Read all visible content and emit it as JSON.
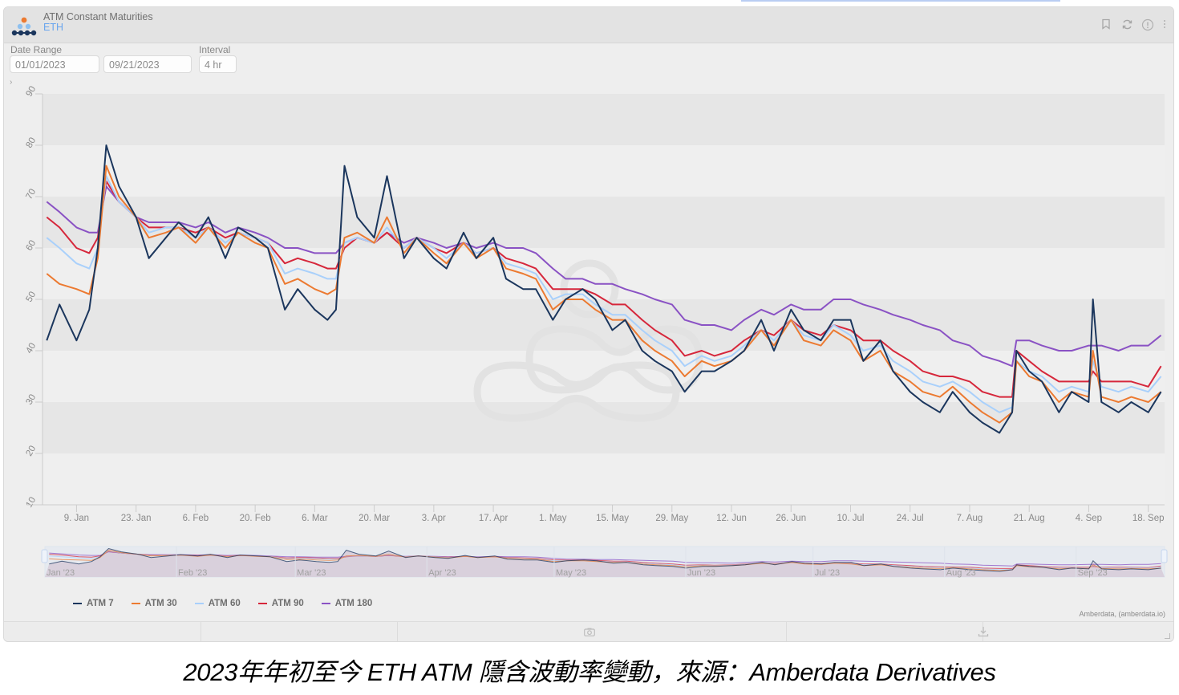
{
  "widget": {
    "title": "ATM Constant Maturities",
    "asset": "ETH",
    "header_icons": [
      "bookmark-icon",
      "refresh-icon",
      "info-icon",
      "more-vertical-icon"
    ],
    "controls": {
      "date_range_label": "Date Range",
      "date_start": "01/01/2023",
      "date_end": "09/21/2023",
      "interval_label": "Interval",
      "interval_value": "4 hr",
      "expander": "›"
    },
    "credit": "Amberdata, (amberdata.io)",
    "footer_icons": [
      "camera-icon",
      "download-icon"
    ]
  },
  "caption": "2023年年初至今 ETH ATM 隱含波動率變動，來源：Amberdata Derivatives",
  "colors": {
    "atm7": "#1b365d",
    "atm30": "#ec7a31",
    "atm60": "#a9d0fb",
    "atm90": "#d6273b",
    "atm180": "#8a52c4",
    "band": "#e6e6e6",
    "plot_bg": "#efefef"
  },
  "chart_data": {
    "type": "line",
    "title": "ATM Constant Maturities",
    "subtitle": "ETH",
    "xlabel": "",
    "ylabel": "",
    "ylim": [
      10,
      90
    ],
    "yticks": [
      10,
      20,
      30,
      40,
      50,
      60,
      70,
      80,
      90
    ],
    "xticks": [
      "9. Jan",
      "23. Jan",
      "6. Feb",
      "20. Feb",
      "6. Mar",
      "20. Mar",
      "3. Apr",
      "17. Apr",
      "1. May",
      "15. May",
      "29. May",
      "12. Jun",
      "26. Jun",
      "10. Jul",
      "24. Jul",
      "7. Aug",
      "21. Aug",
      "4. Sep",
      "18. Sep"
    ],
    "navigator_labels": [
      "Jan '23",
      "Feb '23",
      "Mar '23",
      "Apr '23",
      "May '23",
      "Jun '23",
      "Jul '23",
      "Aug '23",
      "Sep '23"
    ],
    "grid": "alternating horizontal bands",
    "legend_position": "bottom-left",
    "x": [
      "2023-01-02",
      "2023-01-05",
      "2023-01-09",
      "2023-01-12",
      "2023-01-14",
      "2023-01-16",
      "2023-01-19",
      "2023-01-23",
      "2023-01-26",
      "2023-01-30",
      "2023-02-02",
      "2023-02-06",
      "2023-02-09",
      "2023-02-13",
      "2023-02-16",
      "2023-02-20",
      "2023-02-23",
      "2023-02-27",
      "2023-03-02",
      "2023-03-06",
      "2023-03-09",
      "2023-03-11",
      "2023-03-13",
      "2023-03-16",
      "2023-03-20",
      "2023-03-23",
      "2023-03-27",
      "2023-03-30",
      "2023-04-03",
      "2023-04-06",
      "2023-04-10",
      "2023-04-13",
      "2023-04-17",
      "2023-04-20",
      "2023-04-24",
      "2023-04-27",
      "2023-05-01",
      "2023-05-04",
      "2023-05-08",
      "2023-05-11",
      "2023-05-15",
      "2023-05-18",
      "2023-05-22",
      "2023-05-25",
      "2023-05-29",
      "2023-06-01",
      "2023-06-05",
      "2023-06-08",
      "2023-06-12",
      "2023-06-15",
      "2023-06-19",
      "2023-06-22",
      "2023-06-26",
      "2023-06-29",
      "2023-07-03",
      "2023-07-06",
      "2023-07-10",
      "2023-07-13",
      "2023-07-17",
      "2023-07-20",
      "2023-07-24",
      "2023-07-27",
      "2023-07-31",
      "2023-08-03",
      "2023-08-07",
      "2023-08-10",
      "2023-08-14",
      "2023-08-17",
      "2023-08-18",
      "2023-08-21",
      "2023-08-24",
      "2023-08-28",
      "2023-08-31",
      "2023-09-04",
      "2023-09-05",
      "2023-09-07",
      "2023-09-11",
      "2023-09-14",
      "2023-09-18",
      "2023-09-21"
    ],
    "series": [
      {
        "name": "ATM 7",
        "key": "atm7",
        "values": [
          42,
          49,
          42,
          48,
          60,
          80,
          72,
          66,
          58,
          62,
          65,
          62,
          66,
          58,
          64,
          62,
          60,
          48,
          52,
          48,
          46,
          48,
          76,
          66,
          62,
          74,
          58,
          62,
          58,
          56,
          63,
          58,
          62,
          54,
          52,
          52,
          46,
          50,
          52,
          50,
          44,
          46,
          40,
          38,
          36,
          32,
          36,
          36,
          38,
          40,
          46,
          40,
          48,
          44,
          42,
          46,
          46,
          38,
          42,
          36,
          32,
          30,
          28,
          32,
          28,
          26,
          24,
          28,
          40,
          36,
          34,
          28,
          32,
          30,
          50,
          30,
          28,
          30,
          28,
          32
        ]
      },
      {
        "name": "ATM 30",
        "key": "atm30",
        "values": [
          55,
          53,
          52,
          51,
          58,
          76,
          70,
          66,
          62,
          63,
          64,
          61,
          64,
          60,
          63,
          61,
          60,
          53,
          54,
          52,
          51,
          52,
          62,
          63,
          61,
          66,
          59,
          62,
          59,
          57,
          61,
          58,
          60,
          56,
          55,
          54,
          48,
          50,
          50,
          48,
          46,
          46,
          42,
          40,
          38,
          35,
          38,
          37,
          38,
          40,
          44,
          41,
          46,
          42,
          41,
          44,
          42,
          38,
          40,
          36,
          34,
          32,
          31,
          33,
          30,
          28,
          26,
          28,
          38,
          35,
          34,
          30,
          32,
          31,
          40,
          31,
          30,
          31,
          30,
          32
        ]
      },
      {
        "name": "ATM 60",
        "key": "atm60",
        "values": [
          62,
          60,
          57,
          56,
          60,
          74,
          69,
          66,
          63,
          64,
          64,
          62,
          64,
          61,
          63,
          62,
          61,
          55,
          56,
          55,
          54,
          54,
          61,
          62,
          61,
          64,
          60,
          62,
          60,
          58,
          61,
          59,
          60,
          57,
          56,
          55,
          50,
          51,
          51,
          49,
          47,
          47,
          44,
          42,
          40,
          37,
          39,
          38,
          39,
          41,
          44,
          42,
          46,
          43,
          42,
          45,
          43,
          40,
          41,
          38,
          36,
          34,
          33,
          34,
          32,
          30,
          28,
          29,
          38,
          36,
          35,
          32,
          33,
          32,
          38,
          33,
          32,
          33,
          32,
          35
        ]
      },
      {
        "name": "ATM 90",
        "key": "atm90",
        "values": [
          66,
          64,
          60,
          59,
          62,
          73,
          69,
          66,
          64,
          64,
          64,
          63,
          64,
          62,
          63,
          62,
          61,
          57,
          58,
          57,
          56,
          56,
          60,
          62,
          61,
          63,
          60,
          62,
          60,
          59,
          61,
          59,
          60,
          58,
          57,
          56,
          52,
          52,
          52,
          51,
          49,
          49,
          46,
          44,
          42,
          39,
          40,
          39,
          40,
          42,
          44,
          43,
          46,
          44,
          43,
          45,
          44,
          42,
          42,
          40,
          38,
          36,
          35,
          35,
          34,
          32,
          31,
          31,
          40,
          38,
          36,
          34,
          34,
          34,
          36,
          34,
          34,
          34,
          33,
          37
        ]
      },
      {
        "name": "ATM 180",
        "key": "atm180",
        "values": [
          69,
          67,
          64,
          63,
          63,
          72,
          69,
          66,
          65,
          65,
          65,
          64,
          65,
          63,
          64,
          63,
          62,
          60,
          60,
          59,
          59,
          59,
          61,
          62,
          61,
          63,
          61,
          62,
          61,
          60,
          61,
          60,
          61,
          60,
          60,
          59,
          56,
          54,
          54,
          53,
          53,
          52,
          51,
          50,
          49,
          46,
          45,
          45,
          44,
          46,
          48,
          47,
          49,
          48,
          48,
          50,
          50,
          49,
          48,
          47,
          46,
          45,
          44,
          42,
          41,
          39,
          38,
          37,
          42,
          42,
          41,
          40,
          40,
          41,
          41,
          41,
          40,
          41,
          41,
          43
        ]
      }
    ]
  }
}
